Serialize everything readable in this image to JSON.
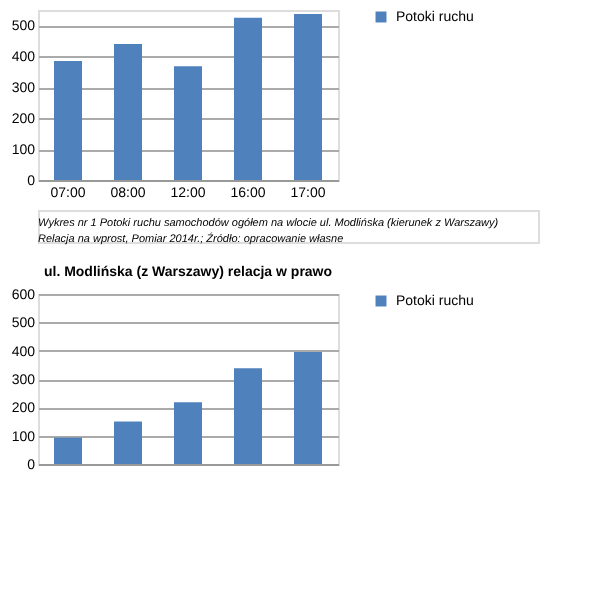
{
  "chart_data": [
    {
      "type": "bar",
      "categories": [
        "07:00",
        "08:00",
        "12:00",
        "16:00",
        "17:00"
      ],
      "series": [
        {
          "name": "Potoki ruchu",
          "color": "#4f81bd",
          "values": [
            385,
            440,
            368,
            525,
            537
          ]
        }
      ],
      "ylim": [
        0,
        550
      ],
      "yticks": [
        0,
        100,
        200,
        300,
        400,
        500
      ],
      "grid": "y",
      "legend": "right",
      "annotations": [
        "Wykres nr 1 Potoki ruchu samochodów ogółem na wlocie ul. Modlińska (kierunek z Warszawy)",
        "Relacja na wprost, Pomiar 2014r.; Źródło: opracowanie własne"
      ]
    },
    {
      "type": "bar",
      "title": "ul. Modlińska (z Warszawy) relacja w prawo",
      "categories": [
        null,
        null,
        null,
        null,
        null
      ],
      "series": [
        {
          "name": "Potoki ruchu",
          "color": "#4f81bd",
          "values": [
            93,
            150,
            218,
            338,
            395
          ]
        }
      ],
      "ylim": [
        0,
        600
      ],
      "yticks": [
        0,
        100,
        200,
        300,
        400,
        500,
        600
      ],
      "grid": "y",
      "legend": "right"
    }
  ]
}
